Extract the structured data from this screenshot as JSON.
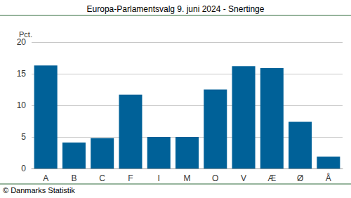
{
  "chart_data": {
    "type": "bar",
    "title": "Europa-Parlamentsvalg 9. juni 2024 - Snertinge",
    "y_label": "Pct.",
    "source": "© Danmarks Statistik",
    "categories": [
      "A",
      "B",
      "C",
      "F",
      "I",
      "M",
      "O",
      "V",
      "Æ",
      "Ø",
      "Å"
    ],
    "values": [
      16.3,
      4.1,
      4.8,
      11.7,
      5.0,
      5.0,
      12.5,
      16.2,
      15.9,
      7.4,
      1.9
    ],
    "color": "#006198",
    "ylim": [
      0,
      20
    ],
    "yticks": [
      0,
      5,
      10,
      15,
      20
    ],
    "grid": true
  }
}
